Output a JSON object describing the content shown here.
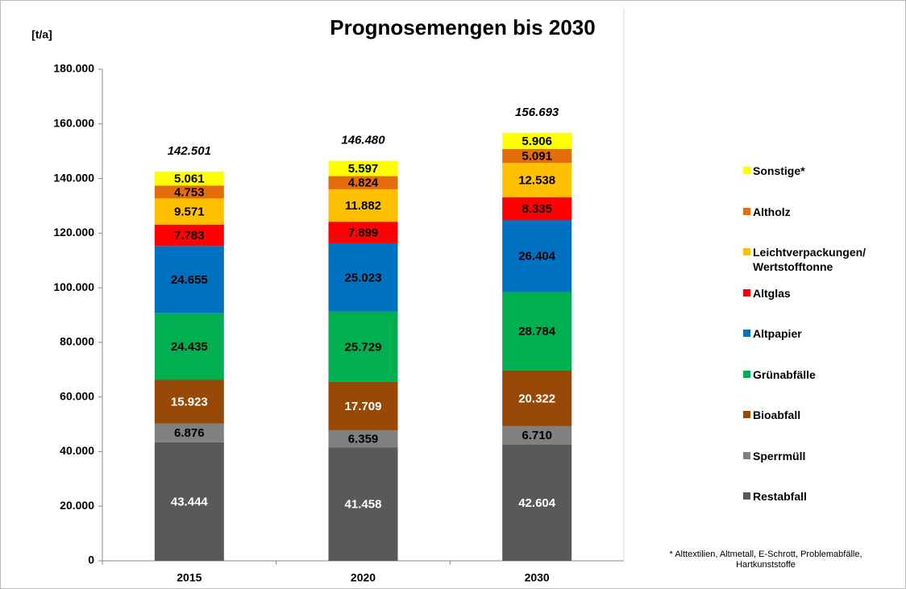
{
  "chart_data": {
    "type": "stacked_bar",
    "title": "Prognosemengen bis 2030",
    "y_label": "[t/a]",
    "footnote": "* Alttextilien, Altmetall, E-Schrott, Problemabfälle, Hartkunststoffe",
    "categories": [
      "2015",
      "2020",
      "2030"
    ],
    "ylim": [
      0,
      180000
    ],
    "yticks": [
      0,
      {
        "value": 20000,
        "label": "20.000"
      },
      {
        "value": 40000,
        "label": "40.000"
      },
      {
        "value": 60000,
        "label": "60.000"
      },
      {
        "value": 80000,
        "label": "80.000"
      },
      {
        "value": 100000,
        "label": "100.000"
      },
      {
        "value": 120000,
        "label": "120.000"
      },
      {
        "value": 140000,
        "label": "140.000"
      },
      {
        "value": 160000,
        "label": "160.000"
      },
      {
        "value": 180000,
        "label": "180.000"
      }
    ],
    "series": [
      {
        "name": "Restabfall",
        "color": "#595959",
        "label_color": "#ffffff",
        "values": [
          43444,
          41458,
          42604
        ],
        "value_labels": [
          "43.444",
          "41.458",
          "42.604"
        ]
      },
      {
        "name": "Sperrmüll",
        "color": "#808080",
        "label_color": "#000000",
        "values": [
          6876,
          6359,
          6710
        ],
        "value_labels": [
          "6.876",
          "6.359",
          "6.710"
        ]
      },
      {
        "name": "Bioabfall",
        "color": "#984807",
        "label_color": "#ffffff",
        "values": [
          15923,
          17709,
          20322
        ],
        "value_labels": [
          "15.923",
          "17.709",
          "20.322"
        ]
      },
      {
        "name": "Grünabfälle",
        "color": "#00b050",
        "label_color": "#000000",
        "values": [
          24435,
          25729,
          28784
        ],
        "value_labels": [
          "24.435",
          "25.729",
          "28.784"
        ]
      },
      {
        "name": "Altpapier",
        "color": "#0070c0",
        "label_color": "#000000",
        "values": [
          24655,
          25023,
          26404
        ],
        "value_labels": [
          "24.655",
          "25.023",
          "26.404"
        ]
      },
      {
        "name": "Altglas",
        "color": "#ff0000",
        "label_color": "#000000",
        "values": [
          7783,
          7899,
          8335
        ],
        "value_labels": [
          "7.783",
          "7.899",
          "8.335"
        ]
      },
      {
        "name": "Leichtverpackungen/ Wertstofftonne",
        "color": "#ffc000",
        "label_color": "#000000",
        "values": [
          9571,
          11882,
          12538
        ],
        "value_labels": [
          "9.571",
          "11.882",
          "12.538"
        ]
      },
      {
        "name": "Altholz",
        "color": "#e46c0a",
        "label_color": "#000000",
        "values": [
          4753,
          4824,
          5091
        ],
        "value_labels": [
          "4.753",
          "4.824",
          "5.091"
        ]
      },
      {
        "name": "Sonstige*",
        "color": "#ffff00",
        "label_color": "#000000",
        "values": [
          5061,
          5597,
          5906
        ],
        "value_labels": [
          "5.061",
          "5.597",
          "5.906"
        ]
      }
    ],
    "totals": {
      "values": [
        142501,
        146480,
        156693
      ],
      "value_labels": [
        "142.501",
        "146.480",
        "156.693"
      ]
    }
  }
}
